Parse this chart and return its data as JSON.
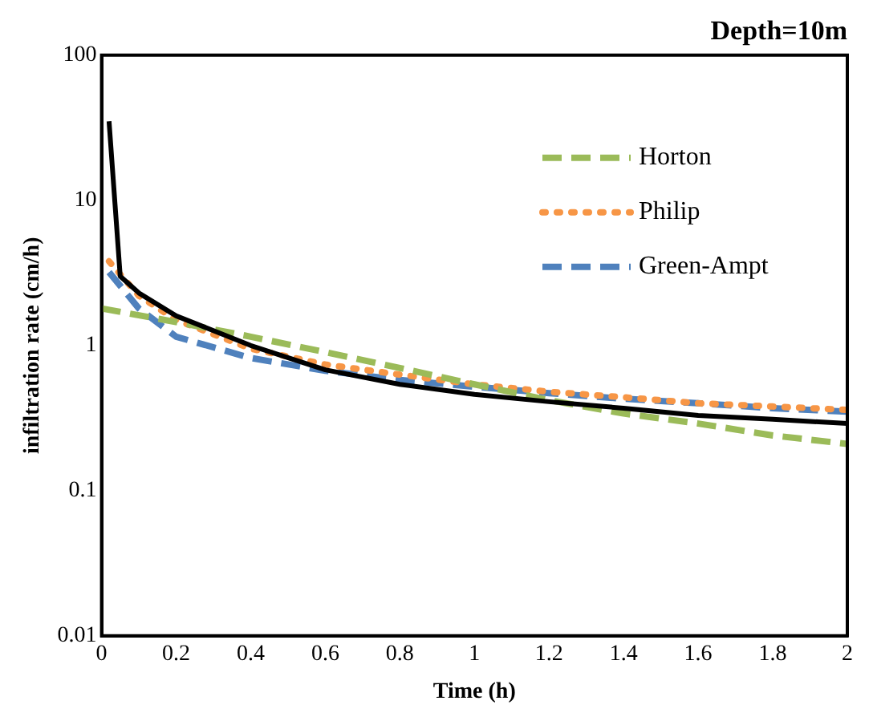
{
  "chart_data": {
    "type": "line",
    "title": "Depth=10m",
    "xlabel": "Time (h)",
    "ylabel": "infiltration rate (cm/h)",
    "log": "y",
    "xlim": [
      0,
      2
    ],
    "xticks": [
      0,
      0.2,
      0.4,
      0.6,
      0.8,
      1,
      1.2,
      1.4,
      1.6,
      1.8,
      2
    ],
    "ylim": [
      0.01,
      100
    ],
    "yticks": [
      0.01,
      0.1,
      1,
      10,
      100
    ],
    "grid": false,
    "legend": "top right",
    "marker": "none",
    "series": [
      {
        "color": "#000000",
        "line_style": "solid",
        "x": [
          0.02,
          0.05,
          0.1,
          0.2,
          0.4,
          0.6,
          0.8,
          1,
          1.2,
          1.4,
          1.6,
          1.8,
          2
        ],
        "values": [
          35,
          3.0,
          2.3,
          1.6,
          1.0,
          0.68,
          0.54,
          0.46,
          0.41,
          0.37,
          0.33,
          0.31,
          0.29
        ]
      },
      {
        "name": "Horton",
        "color": "#9bbb59",
        "line_style": "dashed",
        "x": [
          0,
          0.2,
          0.4,
          0.6,
          0.8,
          1,
          1.2,
          1.4,
          1.6,
          1.8,
          2
        ],
        "values": [
          1.8,
          1.45,
          1.15,
          0.9,
          0.7,
          0.54,
          0.42,
          0.34,
          0.29,
          0.24,
          0.21
        ]
      },
      {
        "name": "Philip",
        "color": "#f79646",
        "line_style": "dotted",
        "x": [
          0.02,
          0.1,
          0.2,
          0.4,
          0.6,
          0.8,
          1,
          1.2,
          1.4,
          1.6,
          1.8,
          2
        ],
        "values": [
          3.8,
          2.2,
          1.5,
          0.95,
          0.74,
          0.63,
          0.54,
          0.48,
          0.44,
          0.4,
          0.38,
          0.36
        ]
      },
      {
        "name": "Green-Ampt",
        "color": "#4f81bd",
        "line_style": "dashed",
        "x": [
          0.02,
          0.1,
          0.2,
          0.4,
          0.6,
          0.8,
          1,
          1.2,
          1.4,
          1.6,
          1.8,
          2
        ],
        "values": [
          3.2,
          1.8,
          1.15,
          0.82,
          0.67,
          0.58,
          0.52,
          0.47,
          0.43,
          0.4,
          0.37,
          0.35
        ]
      }
    ]
  }
}
